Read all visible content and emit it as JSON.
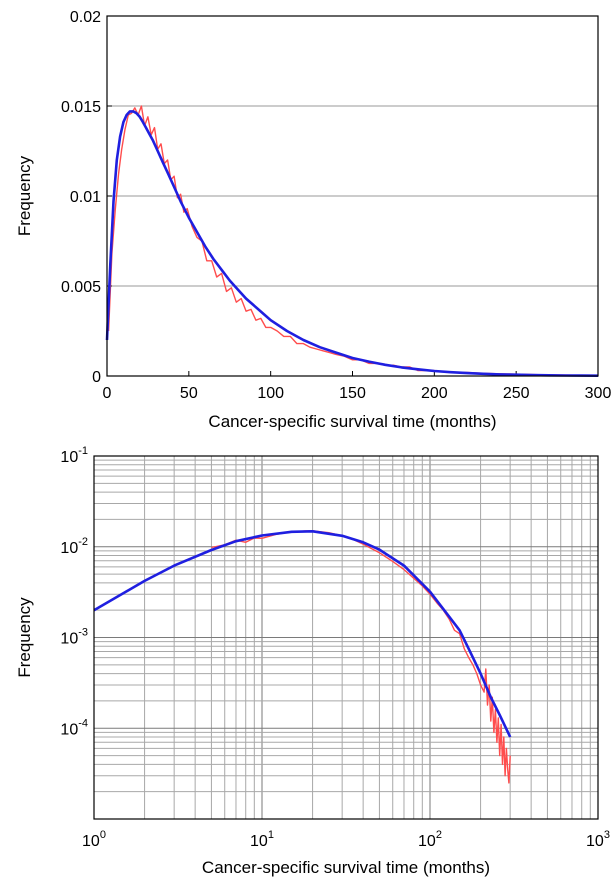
{
  "chart_data": [
    {
      "type": "line",
      "title": "",
      "xlabel": "Cancer-specific survival time (months)",
      "ylabel": "Frequency",
      "xlim": [
        0,
        300
      ],
      "ylim": [
        0,
        0.02
      ],
      "xscale": "linear",
      "yscale": "linear",
      "grid": "horizontal",
      "xticks": [
        0,
        50,
        100,
        150,
        200,
        250,
        300
      ],
      "xtick_labels": [
        "0",
        "50",
        "100",
        "150",
        "200",
        "250",
        "300"
      ],
      "yticks": [
        0,
        0.005,
        0.01,
        0.015,
        0.02
      ],
      "ytick_labels": [
        "0",
        "0.005",
        "0.01",
        "0.015",
        "0.02"
      ],
      "series": [
        {
          "color": "#ff4d4d",
          "x": [
            1,
            3,
            5,
            7,
            9,
            11,
            13,
            15,
            17,
            19,
            21,
            23,
            25,
            27,
            29,
            31,
            33,
            35,
            37,
            39,
            41,
            43,
            45,
            47,
            49,
            52,
            55,
            58,
            61,
            64,
            67,
            70,
            73,
            76,
            79,
            82,
            85,
            88,
            91,
            94,
            97,
            100,
            104,
            108,
            112,
            116,
            120,
            124,
            128,
            132,
            136,
            140,
            145,
            150,
            155,
            160,
            165,
            170,
            175,
            180,
            185,
            190,
            200,
            210,
            220,
            230,
            240,
            250,
            260,
            270,
            280,
            290,
            300
          ],
          "y": [
            0.0025,
            0.0068,
            0.0092,
            0.0112,
            0.0126,
            0.0137,
            0.0145,
            0.0146,
            0.0149,
            0.0145,
            0.015,
            0.0139,
            0.0144,
            0.0134,
            0.0138,
            0.0126,
            0.0129,
            0.0118,
            0.012,
            0.0109,
            0.0111,
            0.0099,
            0.0101,
            0.0091,
            0.0093,
            0.0083,
            0.0077,
            0.0075,
            0.0064,
            0.0064,
            0.0055,
            0.0057,
            0.0047,
            0.0049,
            0.0041,
            0.0043,
            0.0036,
            0.0037,
            0.0031,
            0.0032,
            0.0027,
            0.0027,
            0.0025,
            0.0022,
            0.0022,
            0.0018,
            0.0018,
            0.0016,
            0.0015,
            0.0014,
            0.0013,
            0.0012,
            0.0011,
            0.0009,
            0.0009,
            0.0007,
            0.0007,
            0.0006,
            0.0006,
            0.0005,
            0.0005,
            0.0003,
            0.0003,
            0.0002,
            0.0002,
            0.00015,
            0.00012,
            0.0001,
            8e-05,
            6e-05,
            5e-05,
            4e-05,
            3e-05
          ]
        },
        {
          "color": "#1f1fe0",
          "x": [
            0,
            2,
            4,
            6,
            8,
            10,
            12,
            14,
            16,
            18,
            20,
            22,
            25,
            28,
            31,
            34,
            37,
            40,
            45,
            50,
            55,
            60,
            65,
            70,
            75,
            80,
            85,
            90,
            95,
            100,
            110,
            120,
            130,
            140,
            150,
            160,
            170,
            180,
            190,
            200,
            210,
            220,
            230,
            240,
            250,
            260,
            270,
            280,
            290,
            300
          ],
          "y": [
            0.002,
            0.0062,
            0.0097,
            0.012,
            0.0133,
            0.0141,
            0.0145,
            0.0147,
            0.0147,
            0.0146,
            0.0144,
            0.0141,
            0.0136,
            0.0131,
            0.0125,
            0.0119,
            0.0113,
            0.0107,
            0.0097,
            0.0088,
            0.008,
            0.0072,
            0.0065,
            0.0059,
            0.0053,
            0.0048,
            0.0043,
            0.0039,
            0.0035,
            0.0031,
            0.0025,
            0.002,
            0.0016,
            0.0013,
            0.001,
            0.0008,
            0.00062,
            0.00048,
            0.00037,
            0.00028,
            0.00021,
            0.00016,
            0.00012,
            9e-05,
            7e-05,
            5e-05,
            4e-05,
            3e-05,
            2e-05,
            1.5e-05
          ]
        }
      ]
    },
    {
      "type": "line",
      "title": "",
      "xlabel": "Cancer-specific survival time (months)",
      "ylabel": "Frequency",
      "xlim": [
        1,
        1000
      ],
      "ylim": [
        1e-05,
        0.1
      ],
      "xscale": "log",
      "yscale": "log",
      "grid": "major and minor",
      "xticks": [
        1,
        10,
        100,
        1000
      ],
      "xtick_labels": [
        [
          "10",
          "0"
        ],
        [
          "10",
          "1"
        ],
        [
          "10",
          "2"
        ],
        [
          "10",
          "3"
        ]
      ],
      "yticks": [
        0.0001,
        0.001,
        0.01,
        0.1
      ],
      "ytick_labels": [
        [
          "10",
          "-4"
        ],
        [
          "10",
          "-3"
        ],
        [
          "10",
          "-2"
        ],
        [
          "10",
          "-1"
        ]
      ],
      "series": [
        {
          "color": "#ff4d4d",
          "x": [
            5,
            6,
            7,
            8,
            9,
            10,
            12,
            14,
            16,
            18,
            20,
            25,
            30,
            35,
            40,
            50,
            60,
            70,
            80,
            90,
            100,
            110,
            120,
            130,
            140,
            150,
            160,
            170,
            180,
            190,
            200,
            210,
            215,
            220,
            225,
            230,
            235,
            240,
            245,
            250,
            255,
            260,
            265,
            270,
            275,
            280,
            285,
            290,
            295,
            300
          ],
          "y": [
            0.0098,
            0.0105,
            0.0118,
            0.0112,
            0.0125,
            0.0124,
            0.0136,
            0.0144,
            0.0146,
            0.0149,
            0.015,
            0.0143,
            0.0132,
            0.012,
            0.0107,
            0.0086,
            0.0069,
            0.0056,
            0.0045,
            0.0037,
            0.003,
            0.0024,
            0.002,
            0.0016,
            0.0012,
            0.0011,
            0.00075,
            0.0006,
            0.0005,
            0.0004,
            0.0003,
            0.00025,
            0.00045,
            0.00018,
            0.0003,
            0.00012,
            0.00022,
            9e-05,
            0.00016,
            7e-05,
            0.00013,
            5e-05,
            0.00011,
            4e-05,
            8e-05,
            3e-05,
            6e-05,
            3.5e-05,
            2.5e-05,
            5e-05
          ]
        },
        {
          "color": "#1f1fe0",
          "x": [
            1,
            2,
            3,
            5,
            7,
            10,
            15,
            20,
            30,
            40,
            50,
            70,
            100,
            130,
            150,
            170,
            200,
            230,
            260,
            300
          ],
          "y": [
            0.002,
            0.0042,
            0.0062,
            0.0092,
            0.0115,
            0.0133,
            0.0146,
            0.0148,
            0.0132,
            0.0112,
            0.0093,
            0.0062,
            0.0032,
            0.0017,
            0.0012,
            0.00075,
            0.0004,
            0.00022,
            0.00014,
            8e-05
          ]
        }
      ]
    }
  ]
}
